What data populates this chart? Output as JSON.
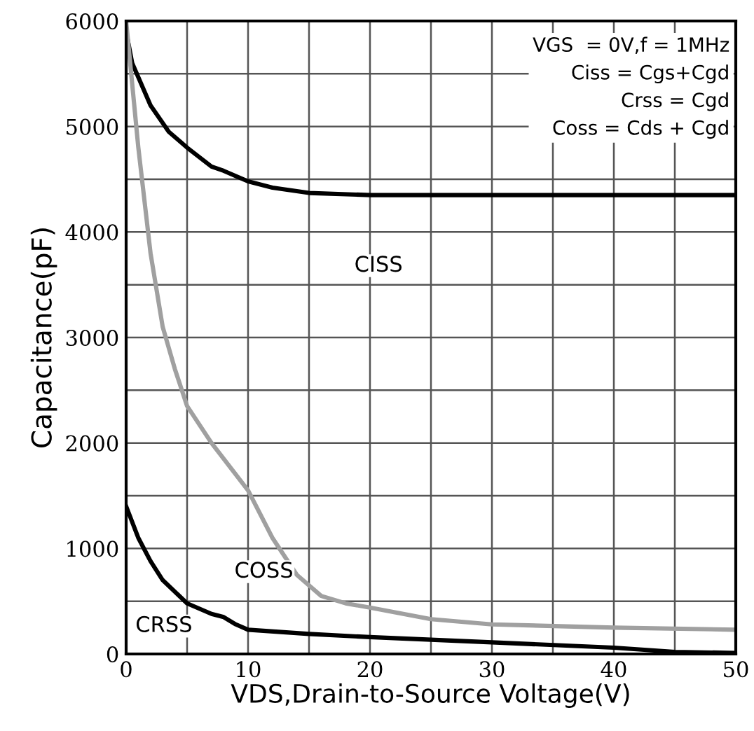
{
  "chart_data": {
    "type": "line",
    "xlabel": "VDS,Drain-to-Source Voltage(V)",
    "ylabel": "Capacitance(pF)",
    "xlim": [
      0,
      50
    ],
    "ylim": [
      0,
      6000
    ],
    "xticks": [
      0,
      {
        "value": 5,
        "label": null
      },
      10,
      {
        "value": 15,
        "label": null
      },
      20,
      {
        "value": 25,
        "label": null
      },
      30,
      {
        "value": 35,
        "label": null
      },
      40,
      {
        "value": 45,
        "label": null
      },
      50
    ],
    "yticks": [
      0,
      {
        "value": 500,
        "label": null
      },
      1000,
      {
        "value": 1500,
        "label": null
      },
      2000,
      {
        "value": 2500,
        "label": null
      },
      3000,
      {
        "value": 3500,
        "label": null
      },
      4000,
      {
        "value": 4500,
        "label": null
      },
      5000,
      {
        "value": 5500,
        "label": null
      },
      6000
    ],
    "grid": true,
    "series": [
      {
        "color": "#000000",
        "x": [
          0,
          0.5,
          2,
          3.5,
          5,
          7,
          8,
          10,
          12,
          15,
          20,
          30,
          40,
          50
        ],
        "values": [
          5900,
          5600,
          5200,
          4950,
          4800,
          4620,
          4580,
          4480,
          4420,
          4370,
          4350,
          4350,
          4350,
          4350
        ]
      },
      {
        "color": "#a0a0a0",
        "x": [
          0,
          1,
          2,
          3,
          4,
          5,
          7,
          10,
          12,
          14,
          16,
          18,
          20,
          25,
          30,
          40,
          50
        ],
        "values": [
          6000,
          4800,
          3800,
          3100,
          2700,
          2350,
          2000,
          1550,
          1100,
          750,
          550,
          480,
          440,
          330,
          280,
          250,
          230
        ]
      },
      {
        "color": "#000000",
        "x": [
          0,
          1,
          2,
          3,
          5,
          7,
          8,
          9,
          10,
          15,
          20,
          30,
          40,
          45,
          50
        ],
        "values": [
          1400,
          1100,
          880,
          700,
          480,
          380,
          350,
          280,
          230,
          190,
          160,
          110,
          60,
          20,
          10
        ]
      }
    ],
    "annotations": [
      "VGS  = 0V,f = 1MHz",
      "Ciss = Cgs+Cgd",
      "Crss = Cgd",
      "Coss = Cds + Cgd",
      {
        "text": "CISS",
        "x": 20.7,
        "y": 3680
      },
      {
        "text": "COSS",
        "x": 11.3,
        "y": 780
      },
      {
        "text": "CRSS",
        "x": 3.1,
        "y": 265
      }
    ]
  }
}
